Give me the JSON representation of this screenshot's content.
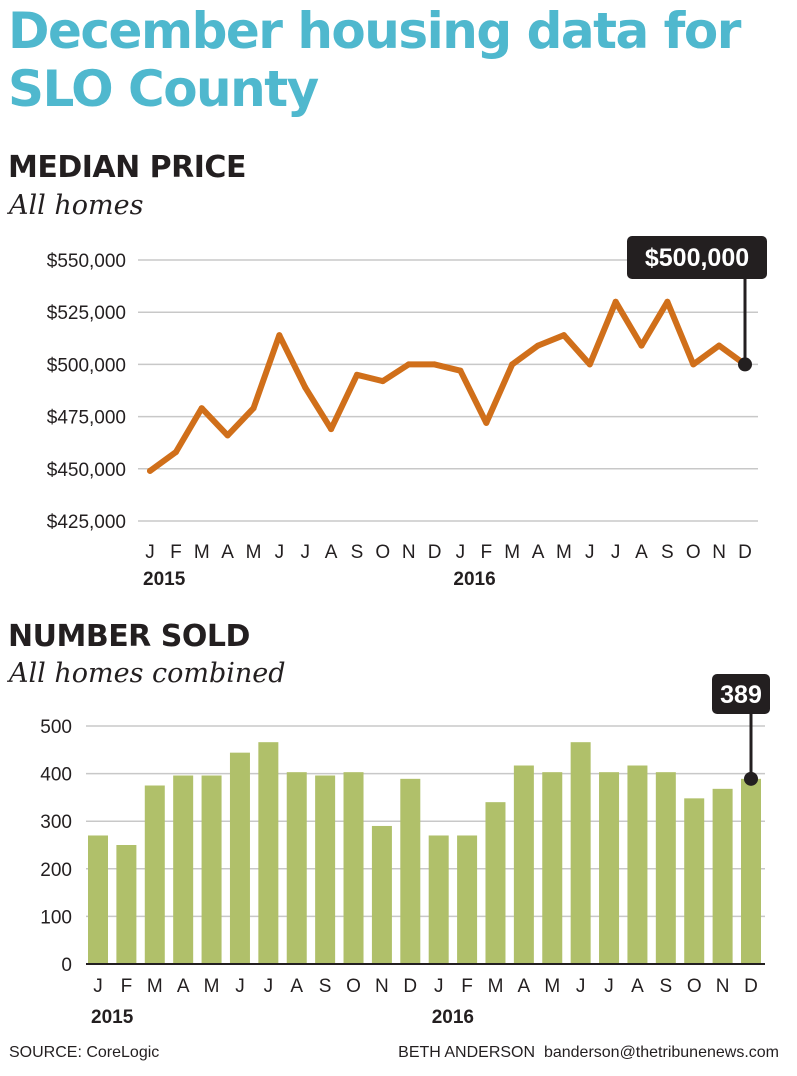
{
  "title": "December housing data for SLO County",
  "colors": {
    "title": "#4fb8ce",
    "line": "#d06f1a",
    "bars": "#b0c06a",
    "callout_bg": "#231f20",
    "grid": "#c8c8c8"
  },
  "footer": {
    "source": "SOURCE: CoreLogic",
    "credit": "BETH ANDERSON  banderson@thetribunenews.com"
  },
  "chart_data": [
    {
      "type": "line",
      "title": "MEDIAN PRICE",
      "subtitle": "All homes",
      "categories": [
        "J",
        "F",
        "M",
        "A",
        "M",
        "J",
        "J",
        "A",
        "S",
        "O",
        "N",
        "D",
        "J",
        "F",
        "M",
        "A",
        "M",
        "J",
        "J",
        "A",
        "S",
        "O",
        "N",
        "D"
      ],
      "year_labels": [
        {
          "index": 0,
          "label": "2015"
        },
        {
          "index": 12,
          "label": "2016"
        }
      ],
      "values": [
        449000,
        458000,
        479000,
        466000,
        479000,
        514000,
        489000,
        469000,
        495000,
        492000,
        500000,
        500000,
        497000,
        472000,
        500000,
        509000,
        514000,
        500000,
        530000,
        509000,
        530000,
        500000,
        509000,
        500000
      ],
      "ylim": [
        425000,
        550000
      ],
      "yticks": [
        425000,
        450000,
        475000,
        500000,
        525000,
        550000
      ],
      "ytick_labels": [
        "$425,000",
        "$450,000",
        "$475,000",
        "$500,000",
        "$525,000",
        "$550,000"
      ],
      "callout": {
        "index": 23,
        "label": "$500,000"
      },
      "grid": true
    },
    {
      "type": "bar",
      "title": "NUMBER SOLD",
      "subtitle": "All homes combined",
      "categories": [
        "J",
        "F",
        "M",
        "A",
        "M",
        "J",
        "J",
        "A",
        "S",
        "O",
        "N",
        "D",
        "J",
        "F",
        "M",
        "A",
        "M",
        "J",
        "J",
        "A",
        "S",
        "O",
        "N",
        "D"
      ],
      "year_labels": [
        {
          "index": 0,
          "label": "2015"
        },
        {
          "index": 12,
          "label": "2016"
        }
      ],
      "values": [
        270,
        250,
        375,
        396,
        396,
        444,
        466,
        403,
        396,
        403,
        290,
        389,
        270,
        270,
        340,
        417,
        403,
        466,
        403,
        417,
        403,
        348,
        368,
        389
      ],
      "ylim": [
        0,
        500
      ],
      "yticks": [
        0,
        100,
        200,
        300,
        400,
        500
      ],
      "ytick_labels": [
        "0",
        "100",
        "200",
        "300",
        "400",
        "500"
      ],
      "callout": {
        "index": 23,
        "label": "389"
      },
      "grid": true
    }
  ]
}
